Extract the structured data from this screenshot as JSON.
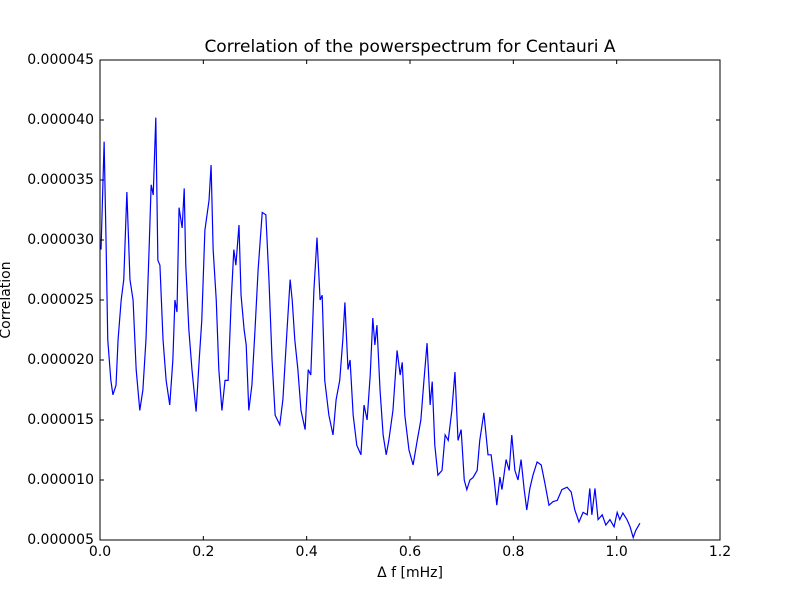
{
  "chart_data": {
    "type": "line",
    "title": "Correlation of the powerspectrum for Centauri A",
    "x_label": "Δ f [mHz]",
    "y_label": "Correlation",
    "color": "#0000ff",
    "xlim": [
      0,
      1.2
    ],
    "ylim": [
      5e-06,
      4.5e-05
    ],
    "xticks": [
      {
        "value": 0,
        "label": "0.0"
      },
      0.2,
      0.4,
      0.6,
      0.8,
      {
        "value": 1,
        "label": "1.0"
      },
      1.2
    ],
    "yticks": [
      5e-06,
      {
        "value": 1e-05,
        "label": "0.000010"
      },
      1.5e-05,
      {
        "value": 2e-05,
        "label": "0.000020"
      },
      2.5e-05,
      {
        "value": 3e-05,
        "label": "0.000030"
      },
      3.5e-05,
      {
        "value": 4e-05,
        "label": "0.000040"
      },
      4.5e-05
    ],
    "x": [
      0.002,
      0.008,
      0.012,
      0.015,
      0.021,
      0.025,
      0.031,
      0.035,
      0.041,
      0.046,
      0.052,
      0.058,
      0.064,
      0.07,
      0.077,
      0.083,
      0.089,
      0.095,
      0.099,
      0.103,
      0.108,
      0.112,
      0.116,
      0.122,
      0.128,
      0.135,
      0.141,
      0.145,
      0.149,
      0.153,
      0.159,
      0.163,
      0.166,
      0.172,
      0.178,
      0.186,
      0.192,
      0.197,
      0.203,
      0.211,
      0.215,
      0.219,
      0.225,
      0.23,
      0.236,
      0.242,
      0.248,
      0.254,
      0.259,
      0.263,
      0.269,
      0.273,
      0.279,
      0.283,
      0.288,
      0.294,
      0.3,
      0.306,
      0.314,
      0.321,
      0.327,
      0.333,
      0.339,
      0.348,
      0.354,
      0.362,
      0.368,
      0.372,
      0.377,
      0.383,
      0.389,
      0.397,
      0.403,
      0.408,
      0.414,
      0.42,
      0.426,
      0.43,
      0.435,
      0.443,
      0.451,
      0.457,
      0.464,
      0.47,
      0.474,
      0.48,
      0.484,
      0.49,
      0.497,
      0.505,
      0.511,
      0.517,
      0.523,
      0.528,
      0.532,
      0.536,
      0.542,
      0.548,
      0.554,
      0.559,
      0.567,
      0.575,
      0.581,
      0.585,
      0.59,
      0.598,
      0.606,
      0.614,
      0.621,
      0.627,
      0.633,
      0.639,
      0.643,
      0.648,
      0.654,
      0.662,
      0.668,
      0.674,
      0.681,
      0.687,
      0.693,
      0.699,
      0.705,
      0.71,
      0.716,
      0.722,
      0.73,
      0.735,
      0.743,
      0.751,
      0.757,
      0.763,
      0.768,
      0.774,
      0.778,
      0.786,
      0.792,
      0.797,
      0.803,
      0.809,
      0.815,
      0.821,
      0.826,
      0.832,
      0.838,
      0.846,
      0.854,
      0.861,
      0.869,
      0.877,
      0.885,
      0.894,
      0.904,
      0.912,
      0.919,
      0.927,
      0.935,
      0.943,
      0.948,
      0.952,
      0.958,
      0.964,
      0.972,
      0.979,
      0.987,
      0.995,
      1.001,
      1.006,
      1.012,
      1.02,
      1.026,
      1.032,
      1.037,
      1.045
    ],
    "values": [
      2.92e-05,
      3.82e-05,
      2.92e-05,
      2.17e-05,
      1.83e-05,
      1.71e-05,
      1.79e-05,
      2.17e-05,
      2.5e-05,
      2.67e-05,
      3.4e-05,
      2.67e-05,
      2.5e-05,
      1.92e-05,
      1.58e-05,
      1.75e-05,
      2.17e-05,
      2.92e-05,
      3.46e-05,
      3.375e-05,
      4.02e-05,
      2.83e-05,
      2.79e-05,
      2.17e-05,
      1.83e-05,
      1.625e-05,
      2e-05,
      2.5e-05,
      2.4e-05,
      3.27e-05,
      3.1e-05,
      3.43e-05,
      2.79e-05,
      2.25e-05,
      1.92e-05,
      1.57e-05,
      2e-05,
      2.33e-05,
      3.08e-05,
      3.33e-05,
      3.625e-05,
      2.92e-05,
      2.5e-05,
      1.92e-05,
      1.58e-05,
      1.83e-05,
      1.83e-05,
      2.5e-05,
      2.92e-05,
      2.79e-05,
      3.125e-05,
      2.54e-05,
      2.25e-05,
      2.125e-05,
      1.58e-05,
      1.79e-05,
      2.25e-05,
      2.75e-05,
      3.23e-05,
      3.21e-05,
      2.67e-05,
      2e-05,
      1.54e-05,
      1.46e-05,
      1.67e-05,
      2.25e-05,
      2.67e-05,
      2.5e-05,
      2.17e-05,
      1.92e-05,
      1.58e-05,
      1.42e-05,
      1.92e-05,
      1.875e-05,
      2.58e-05,
      3.02e-05,
      2.5e-05,
      2.54e-05,
      1.83e-05,
      1.54e-05,
      1.375e-05,
      1.67e-05,
      1.83e-05,
      2.17e-05,
      2.48e-05,
      1.92e-05,
      2e-05,
      1.54e-05,
      1.29e-05,
      1.21e-05,
      1.625e-05,
      1.5e-05,
      1.875e-05,
      2.35e-05,
      2.125e-05,
      2.29e-05,
      1.75e-05,
      1.375e-05,
      1.21e-05,
      1.33e-05,
      1.58e-05,
      2.08e-05,
      1.875e-05,
      1.98e-05,
      1.54e-05,
      1.25e-05,
      1.125e-05,
      1.33e-05,
      1.5e-05,
      1.83e-05,
      2.14e-05,
      1.625e-05,
      1.82e-05,
      1.29e-05,
      1.04e-05,
      1.08e-05,
      1.375e-05,
      1.33e-05,
      1.58e-05,
      1.9e-05,
      1.33e-05,
      1.42e-05,
      1e-05,
      9.2e-06,
      1e-05,
      1.02e-05,
      1.08e-05,
      1.33e-05,
      1.56e-05,
      1.21e-05,
      1.21e-05,
      1e-05,
      7.9e-06,
      1.025e-05,
      9.2e-06,
      1.17e-05,
      1.08e-05,
      1.375e-05,
      1.08e-05,
      1e-05,
      1.17e-05,
      9.2e-06,
      7.5e-06,
      9.3e-06,
      1.04e-05,
      1.15e-05,
      1.125e-05,
      9.75e-06,
      7.9e-06,
      8.2e-06,
      8.3e-06,
      9.2e-06,
      9.4e-06,
      9e-06,
      7.5e-06,
      6.5e-06,
      7.3e-06,
      7.1e-06,
      9.3e-06,
      7.1e-06,
      9.3e-06,
      6.7e-06,
      7.1e-06,
      6.25e-06,
      6.7e-06,
      6.1e-06,
      7.3e-06,
      6.7e-06,
      7.25e-06,
      6.7e-06,
      6.1e-06,
      5.2e-06,
      5.8e-06,
      6.4e-06
    ]
  }
}
